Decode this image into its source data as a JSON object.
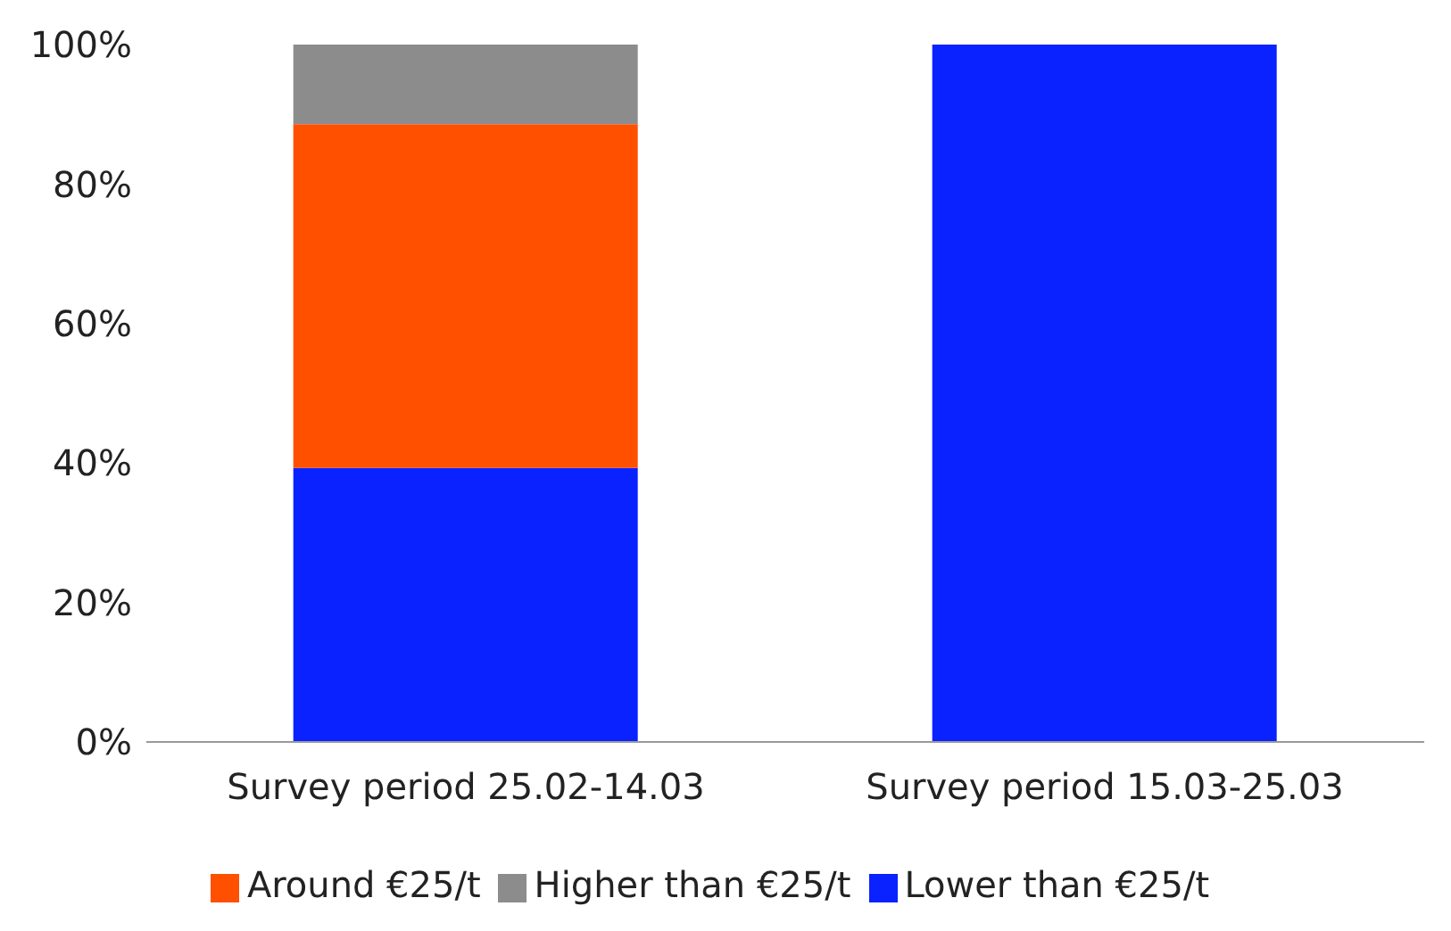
{
  "chart_data": {
    "type": "bar",
    "stacked": true,
    "categories": [
      "Survey period 25.02-14.03",
      "Survey period 15.03-25.03"
    ],
    "series": [
      {
        "name": "Lower than €25/t",
        "color": "#0a22ff",
        "values": [
          39.3,
          100
        ]
      },
      {
        "name": "Around €25/t",
        "color": "#ff5000",
        "values": [
          49.3,
          0
        ]
      },
      {
        "name": "Higher than €25/t",
        "color": "#8c8c8c",
        "values": [
          11.4,
          0
        ]
      }
    ],
    "ylim": [
      0,
      100
    ],
    "yticks": [
      {
        "value": 0,
        "label": "0%"
      },
      {
        "value": 20,
        "label": "20%"
      },
      {
        "value": 40,
        "label": "40%"
      },
      {
        "value": 60,
        "label": "60%"
      },
      {
        "value": 80,
        "label": "80%"
      },
      {
        "value": 100,
        "label": "100%"
      }
    ],
    "grid": false,
    "legend": "bottom"
  }
}
